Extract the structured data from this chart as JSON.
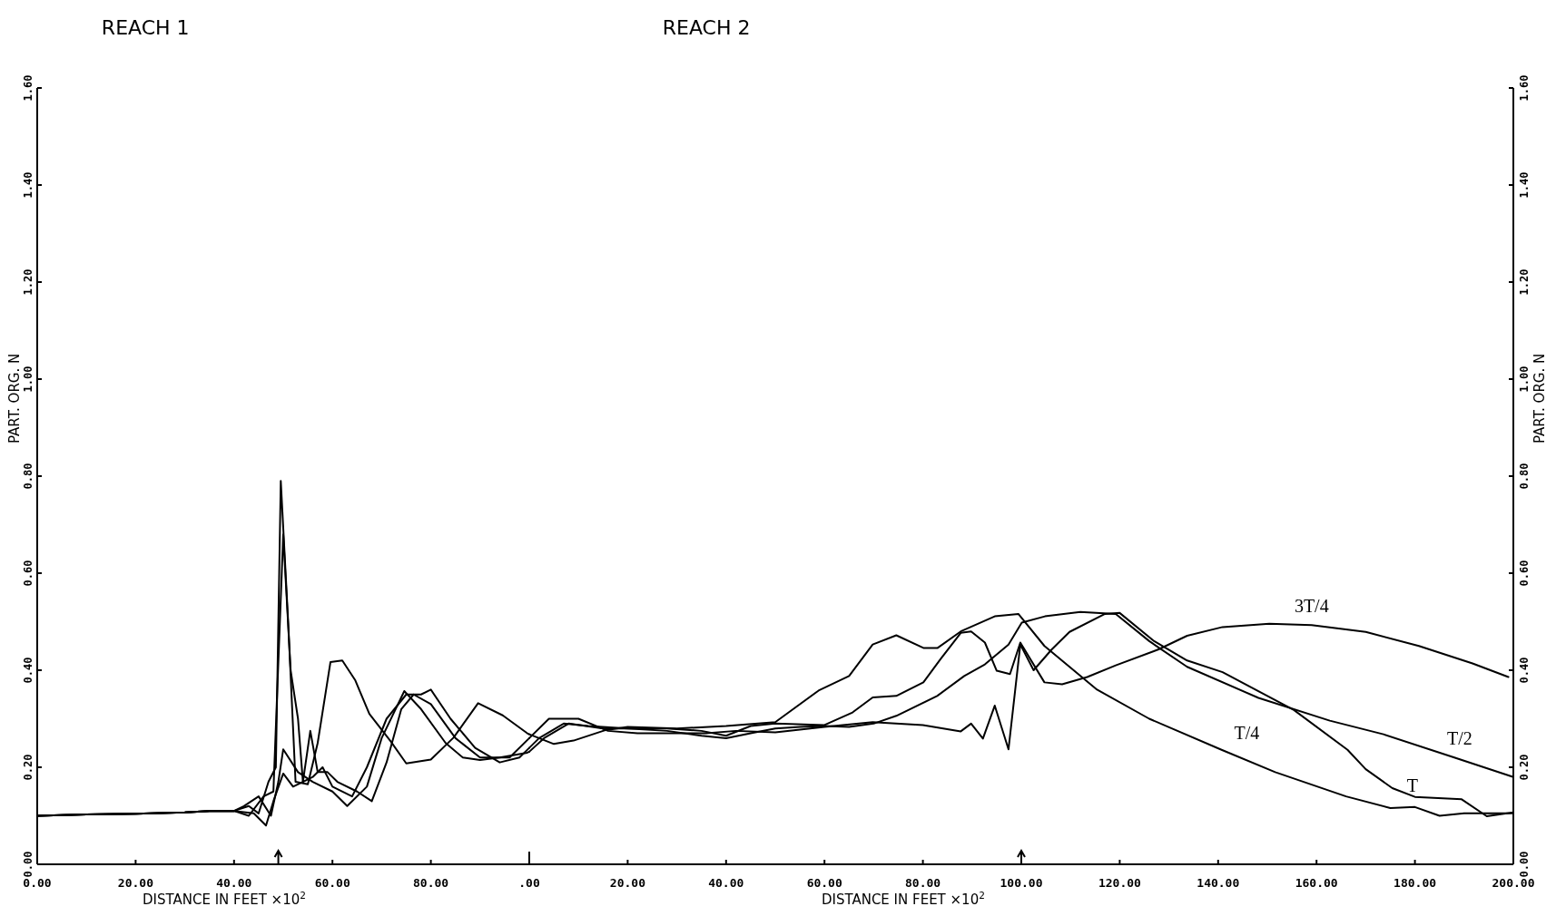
{
  "chart_data": [
    {
      "type": "line",
      "title": "REACH 1",
      "xlabel": "DISTANCE IN FEET ×10$^{2}$",
      "ylabel": "PART. ORG. N",
      "xlim": [
        0,
        100
      ],
      "xticks": [
        {
          "value": 0,
          "label": "0.00"
        },
        {
          "value": 20,
          "label": "20.00"
        },
        {
          "value": 40,
          "label": "40.00"
        },
        {
          "value": 60,
          "label": "60.00"
        },
        {
          "value": 80,
          "label": "80.00"
        }
      ],
      "ylim": [
        0,
        1.6
      ],
      "yticks": [
        {
          "value": 0,
          "label": "0.00"
        },
        {
          "value": 0.2,
          "label": "0.20"
        },
        {
          "value": 0.4,
          "label": "0.40"
        },
        {
          "value": 0.6,
          "label": "0.60"
        },
        {
          "value": 0.8,
          "label": "0.80"
        },
        {
          "value": 1,
          "label": "1.00"
        },
        {
          "value": 1.2,
          "label": "1.20"
        },
        {
          "value": 1.4,
          "label": "1.40"
        },
        {
          "value": 1.6,
          "label": "1.60"
        }
      ],
      "grid": false,
      "marker": "none",
      "line_style": "solid",
      "series": [
        {
          "color": "#000000",
          "x": [
            0,
            10,
            20,
            30,
            35,
            40,
            43,
            45,
            47,
            48.5,
            49.5,
            51,
            52.5,
            55,
            57,
            59.6,
            62,
            64.6,
            67.5,
            71.8,
            75,
            80,
            84.6,
            89.6,
            94.6,
            99.6,
            100
          ],
          "values": [
            0.1,
            0.103,
            0.104,
            0.107,
            0.11,
            0.11,
            0.12,
            0.105,
            0.17,
            0.2,
            0.79,
            0.5,
            0.17,
            0.165,
            0.25,
            0.417,
            0.42,
            0.38,
            0.31,
            0.254,
            0.208,
            0.216,
            0.261,
            0.332,
            0.307,
            0.27,
            0.268
          ]
        },
        {
          "color": "#000000",
          "x": [
            0,
            10,
            20,
            30,
            35,
            40,
            43,
            46,
            48,
            50,
            51.5,
            53,
            54,
            56,
            58,
            60,
            64,
            67,
            71,
            75,
            78,
            80,
            84,
            89,
            94,
            98,
            100
          ],
          "values": [
            0.1,
            0.103,
            0.104,
            0.107,
            0.11,
            0.11,
            0.1,
            0.14,
            0.15,
            0.68,
            0.4,
            0.3,
            0.17,
            0.18,
            0.2,
            0.16,
            0.14,
            0.2,
            0.3,
            0.35,
            0.35,
            0.36,
            0.3,
            0.24,
            0.21,
            0.22,
            0.24
          ]
        },
        {
          "color": "#000000",
          "x": [
            0,
            10,
            20,
            30,
            35,
            40,
            42,
            45,
            47.5,
            49,
            50,
            53,
            56,
            60,
            63,
            67,
            70,
            74.6,
            78,
            83,
            86.5,
            90,
            94,
            99.6,
            100
          ],
          "values": [
            0.1,
            0.103,
            0.104,
            0.107,
            0.11,
            0.11,
            0.12,
            0.14,
            0.1,
            0.17,
            0.237,
            0.19,
            0.17,
            0.15,
            0.12,
            0.16,
            0.26,
            0.357,
            0.32,
            0.25,
            0.22,
            0.215,
            0.22,
            0.23,
            0.232
          ]
        },
        {
          "color": "#000000",
          "x": [
            0,
            10,
            20,
            30,
            35,
            40,
            44,
            46.5,
            48,
            50,
            52,
            54,
            55.5,
            57,
            59,
            61,
            65,
            68,
            71,
            74,
            76.5,
            80,
            85,
            90,
            96,
            100
          ],
          "values": [
            0.1,
            0.103,
            0.104,
            0.107,
            0.11,
            0.11,
            0.105,
            0.08,
            0.13,
            0.187,
            0.16,
            0.17,
            0.275,
            0.19,
            0.19,
            0.17,
            0.15,
            0.13,
            0.21,
            0.32,
            0.35,
            0.33,
            0.26,
            0.22,
            0.22,
            0.26
          ]
        }
      ]
    },
    {
      "type": "line",
      "title": "REACH 2",
      "xlabel": "DISTANCE IN FEET ×10$^{2}$",
      "ylabel": "PART. ORG. N",
      "xlim": [
        0,
        200
      ],
      "xticks": [
        {
          "value": 0,
          "label": ".00"
        },
        {
          "value": 20,
          "label": "20.00"
        },
        {
          "value": 40,
          "label": "40.00"
        },
        {
          "value": 60,
          "label": "60.00"
        },
        {
          "value": 80,
          "label": "80.00"
        },
        {
          "value": 100,
          "label": "100.00"
        },
        {
          "value": 120,
          "label": "120.00"
        },
        {
          "value": 140,
          "label": "140.00"
        },
        {
          "value": 160,
          "label": "160.00"
        },
        {
          "value": 180,
          "label": "180.00"
        },
        {
          "value": 200,
          "label": "200.00"
        }
      ],
      "ylim": [
        0,
        1.6
      ],
      "yticks": [
        {
          "value": 0,
          "label": "0.00"
        },
        {
          "value": 0.2,
          "label": "0.20"
        },
        {
          "value": 0.4,
          "label": "0.40"
        },
        {
          "value": 0.6,
          "label": "0.60"
        },
        {
          "value": 0.8,
          "label": "0.80"
        },
        {
          "value": 1,
          "label": "1.00"
        },
        {
          "value": 1.2,
          "label": "1.20"
        },
        {
          "value": 1.4,
          "label": "1.40"
        },
        {
          "value": 1.6,
          "label": "1.60"
        }
      ],
      "grid": false,
      "marker": "none",
      "line_style": "solid",
      "series": [
        {
          "name": "T/4",
          "color": "#000000",
          "x": [
            0,
            5,
            9,
            15.3,
            20,
            30,
            40,
            50,
            58.8,
            65,
            69.8,
            74.6,
            80.1,
            83,
            87.7,
            94.6,
            99.4,
            104.7,
            115.4,
            126,
            140.7,
            151.6,
            166,
            175,
            180,
            185,
            190,
            200
          ],
          "values": [
            0.268,
            0.248,
            0.255,
            0.276,
            0.283,
            0.28,
            0.285,
            0.293,
            0.358,
            0.388,
            0.453,
            0.472,
            0.446,
            0.446,
            0.48,
            0.511,
            0.516,
            0.45,
            0.36,
            0.3,
            0.236,
            0.19,
            0.14,
            0.116,
            0.118,
            0.1,
            0.105,
            0.105
          ]
        },
        {
          "name": "T/2",
          "color": "#000000",
          "x": [
            0,
            2,
            7,
            12,
            20,
            28,
            35,
            40,
            45,
            50,
            55,
            60,
            65,
            70,
            74.6,
            82.9,
            88.4,
            92.6,
            97.4,
            100.1,
            104.8,
            112,
            119.2,
            126,
            133.7,
            148.2,
            162.7,
            173.6,
            188,
            200
          ],
          "values": [
            0.24,
            0.26,
            0.29,
            0.285,
            0.28,
            0.275,
            0.265,
            0.26,
            0.27,
            0.28,
            0.283,
            0.285,
            0.283,
            0.29,
            0.306,
            0.347,
            0.388,
            0.412,
            0.453,
            0.498,
            0.511,
            0.52,
            0.516,
            0.46,
            0.407,
            0.343,
            0.296,
            0.268,
            0.22,
            0.18
          ]
        },
        {
          "name": "3T/4",
          "color": "#000000",
          "x": [
            0,
            3,
            8,
            15,
            20,
            28,
            35,
            40,
            45,
            50,
            60,
            65.7,
            69.8,
            74.6,
            80.1,
            83.6,
            87.7,
            89.8,
            92.6,
            95,
            97.7,
            99.8,
            104.7,
            108.3,
            113.4,
            119.2,
            127.9,
            133.7,
            140.9,
            150.4,
            159,
            170,
            180.8,
            191.7,
            199
          ],
          "values": [
            0.232,
            0.26,
            0.29,
            0.28,
            0.28,
            0.28,
            0.275,
            0.265,
            0.285,
            0.29,
            0.287,
            0.313,
            0.344,
            0.347,
            0.375,
            0.423,
            0.477,
            0.48,
            0.457,
            0.399,
            0.392,
            0.457,
            0.375,
            0.371,
            0.386,
            0.41,
            0.443,
            0.471,
            0.489,
            0.496,
            0.493,
            0.479,
            0.45,
            0.414,
            0.386
          ]
        },
        {
          "name": "T",
          "color": "#000000",
          "x": [
            0,
            4,
            10,
            16,
            22,
            30,
            36,
            42,
            50,
            60,
            69.8,
            80,
            87.7,
            89.8,
            92.2,
            94.6,
            97.4,
            99.8,
            102.5,
            106.2,
            109.8,
            117,
            120,
            127,
            133.7,
            140.9,
            155.4,
            166.3,
            170,
            175.4,
            180,
            189.5,
            194.6,
            200
          ],
          "values": [
            0.26,
            0.3,
            0.3,
            0.275,
            0.27,
            0.27,
            0.27,
            0.275,
            0.272,
            0.283,
            0.293,
            0.287,
            0.274,
            0.29,
            0.259,
            0.327,
            0.237,
            0.453,
            0.4,
            0.443,
            0.479,
            0.516,
            0.518,
            0.46,
            0.42,
            0.396,
            0.318,
            0.236,
            0.196,
            0.157,
            0.139,
            0.134,
            0.099,
            0.107
          ]
        }
      ]
    }
  ]
}
